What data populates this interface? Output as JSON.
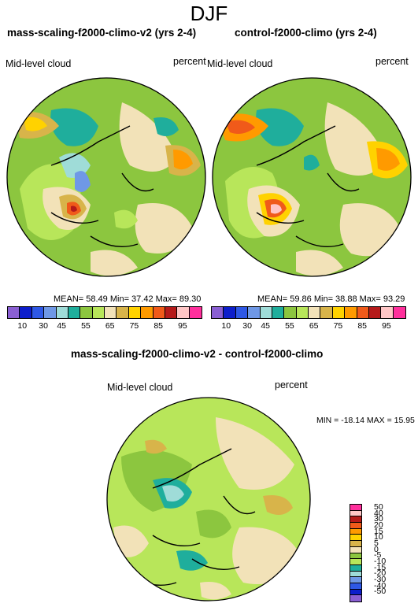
{
  "title": "DJF",
  "panel_left": {
    "title": "mass-scaling-f2000-climo-v2 (yrs 2-4)",
    "var_label": "Mid-level cloud",
    "units": "percent",
    "stats": "MEAN= 58.49  Min= 37.42  Max= 89.30"
  },
  "panel_right": {
    "title": "control-f2000-climo (yrs 2-4)",
    "var_label": "Mid-level cloud",
    "units": "percent",
    "stats": "MEAN= 59.86  Min= 38.88  Max= 93.29"
  },
  "panel_diff": {
    "title": "mass-scaling-f2000-climo-v2 - control-f2000-climo",
    "var_label": "Mid-level cloud",
    "units": "percent",
    "stats": "MIN = -18.14 MAX =  15.95"
  },
  "colorbar_main": {
    "colors": [
      "#8a5fd3",
      "#0d1ecb",
      "#2e58e6",
      "#6f98e6",
      "#9fdcd8",
      "#1fae9c",
      "#8cc63f",
      "#b8e65a",
      "#f2e2b8",
      "#d8b44a",
      "#ffd200",
      "#ff9a00",
      "#f05a1a",
      "#b51a1a",
      "#ffc6c6",
      "#ff2f9c"
    ],
    "ticks": [
      "10",
      "30",
      "45",
      "55",
      "65",
      "75",
      "85",
      "95"
    ]
  },
  "colorbar_diff": {
    "colors": [
      "#ff2f9c",
      "#ffc6c6",
      "#b51a1a",
      "#f05a1a",
      "#ff9a00",
      "#ffd200",
      "#d8b44a",
      "#f2e2b8",
      "#8cc63f",
      "#b8e65a",
      "#1fae9c",
      "#9fdcd8",
      "#6f98e6",
      "#2e58e6",
      "#0d1ecb",
      "#8a5fd3"
    ],
    "ticks": [
      "50",
      "40",
      "30",
      "20",
      "15",
      "10",
      "5",
      "0",
      "-5",
      "-10",
      "-15",
      "-20",
      "-30",
      "-40",
      "-50"
    ]
  }
}
